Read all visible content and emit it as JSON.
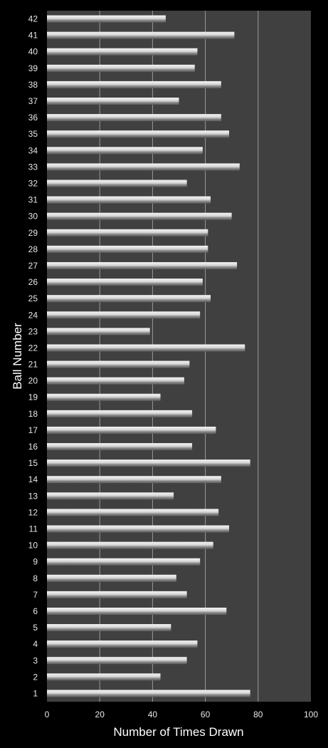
{
  "chart_data": {
    "type": "bar",
    "orientation": "horizontal",
    "categories": [
      "1",
      "2",
      "3",
      "4",
      "5",
      "6",
      "7",
      "8",
      "9",
      "10",
      "11",
      "12",
      "13",
      "14",
      "15",
      "16",
      "17",
      "18",
      "19",
      "20",
      "21",
      "22",
      "23",
      "24",
      "25",
      "26",
      "27",
      "28",
      "29",
      "30",
      "31",
      "32",
      "33",
      "34",
      "35",
      "36",
      "37",
      "38",
      "39",
      "40",
      "41",
      "42"
    ],
    "values": [
      77,
      43,
      53,
      57,
      47,
      68,
      53,
      49,
      58,
      63,
      69,
      65,
      48,
      66,
      77,
      55,
      64,
      55,
      43,
      52,
      54,
      75,
      39,
      58,
      62,
      59,
      72,
      61,
      61,
      70,
      62,
      53,
      73,
      59,
      69,
      66,
      50,
      66,
      56,
      57,
      71,
      45
    ],
    "xlabel": "Number of Times Drawn",
    "ylabel": "Ball Number",
    "xlim": [
      0,
      100
    ],
    "xticks": [
      "0",
      "20",
      "40",
      "60",
      "80",
      "100"
    ],
    "grid": true,
    "legend": "none",
    "colors": {
      "background": "#000000",
      "plot_area": "#404040",
      "bar": "#d0d0d0",
      "gridline": "#9a9a9a",
      "text": "#e8e8e8"
    }
  }
}
